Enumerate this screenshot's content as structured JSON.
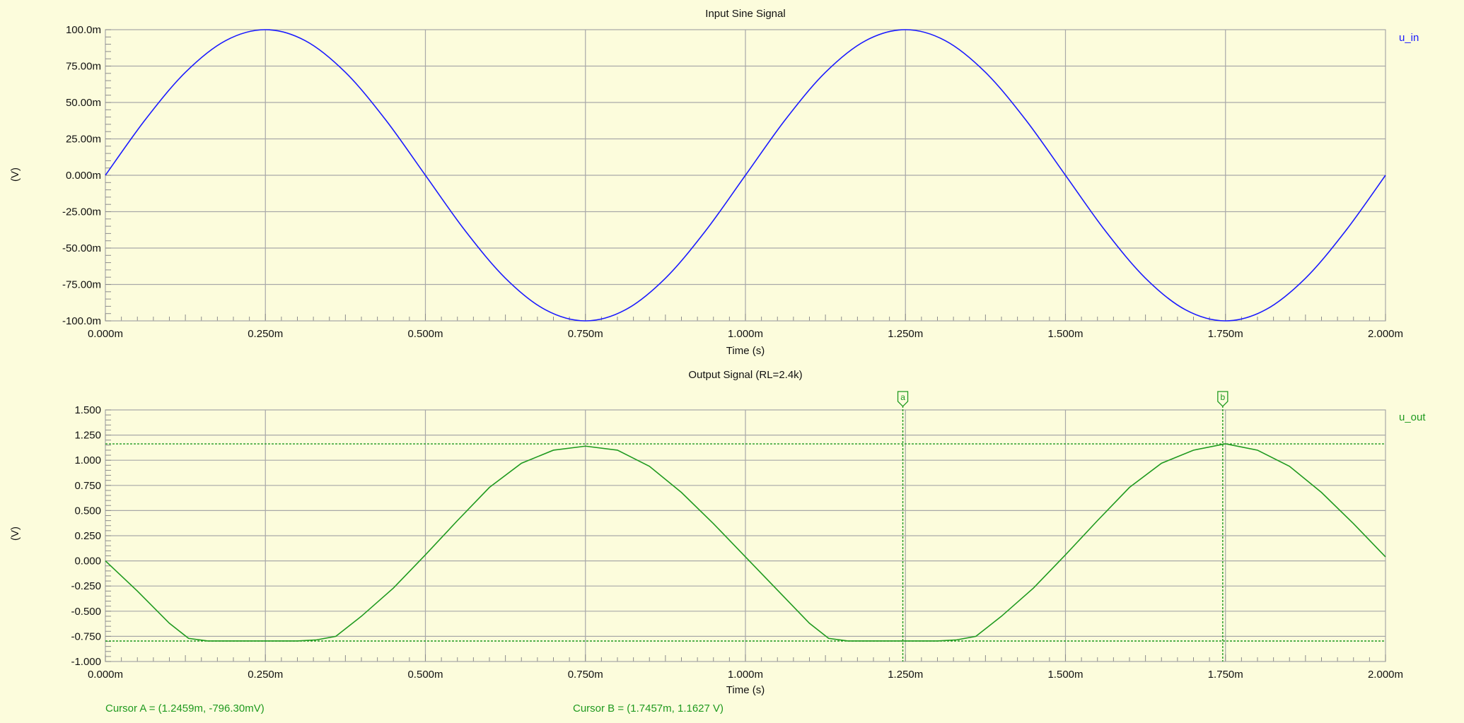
{
  "colors": {
    "background": "#fcfcdc",
    "grid": "#a8a8a8",
    "axis": "#8c8c8c",
    "text": "#111111",
    "input_trace": "#1a1aff",
    "output_trace": "#1f9a1f"
  },
  "chart_data": [
    {
      "type": "line",
      "title": "Input Sine Signal",
      "xlabel": "Time (s)",
      "ylabel": "(V)",
      "xlim": [
        0,
        0.002
      ],
      "ylim": [
        -0.1,
        0.1
      ],
      "x_ticks": [
        0,
        0.00025,
        0.0005,
        0.00075,
        0.001,
        0.00125,
        0.0015,
        0.00175,
        0.002
      ],
      "x_tick_labels": [
        "0.000m",
        "0.250m",
        "0.500m",
        "0.750m",
        "1.000m",
        "1.250m",
        "1.500m",
        "1.750m",
        "2.000m"
      ],
      "y_ticks": [
        0.1,
        0.075,
        0.05,
        0.025,
        0,
        -0.025,
        -0.05,
        -0.075,
        -0.1
      ],
      "y_tick_labels": [
        "100.0m",
        "75.00m",
        "50.00m",
        "25.00m",
        "0.000m",
        "-25.00m",
        "-50.00m",
        "-75.00m",
        "-100.0m"
      ],
      "grid": true,
      "legend_position": "top-right",
      "series": [
        {
          "name": "u_in",
          "color": "#1a1aff",
          "x": [
            0,
            6.25e-05,
            0.000125,
            0.0001875,
            0.00025,
            0.0003125,
            0.000375,
            0.0004375,
            0.0005,
            0.0005625,
            0.000625,
            0.0006875,
            0.00075,
            0.0008125,
            0.000875,
            0.0009375,
            0.001,
            0.0010625,
            0.001125,
            0.0011875,
            0.00125,
            0.0013125,
            0.001375,
            0.0014375,
            0.0015,
            0.0015625,
            0.001625,
            0.0016875,
            0.00175,
            0.0018125,
            0.001875,
            0.0019375,
            0.002
          ],
          "y": [
            0,
            0.0383,
            0.0707,
            0.0924,
            0.1,
            0.0924,
            0.0707,
            0.0383,
            0,
            -0.0383,
            -0.0707,
            -0.0924,
            -0.1,
            -0.0924,
            -0.0707,
            -0.0383,
            0,
            0.0383,
            0.0707,
            0.0924,
            0.1,
            0.0924,
            0.0707,
            0.0383,
            0,
            -0.0383,
            -0.0707,
            -0.0924,
            -0.1,
            -0.0924,
            -0.0707,
            -0.0383,
            0
          ]
        }
      ]
    },
    {
      "type": "line",
      "title": "Output Signal (RL=2.4k)",
      "xlabel": "Time (s)",
      "ylabel": "(V)",
      "xlim": [
        0,
        0.002
      ],
      "ylim": [
        -1.0,
        1.5
      ],
      "x_ticks": [
        0,
        0.00025,
        0.0005,
        0.00075,
        0.001,
        0.00125,
        0.0015,
        0.00175,
        0.002
      ],
      "x_tick_labels": [
        "0.000m",
        "0.250m",
        "0.500m",
        "0.750m",
        "1.000m",
        "1.250m",
        "1.500m",
        "1.750m",
        "2.000m"
      ],
      "y_ticks": [
        1.5,
        1.25,
        1.0,
        0.75,
        0.5,
        0.25,
        0,
        -0.25,
        -0.5,
        -0.75,
        -1.0
      ],
      "y_tick_labels": [
        "1.500",
        "1.250",
        "1.000",
        "0.750",
        "0.500",
        "0.250",
        "0.000",
        "-0.250",
        "-0.500",
        "-0.750",
        "-1.000"
      ],
      "grid": true,
      "legend_position": "top-right",
      "series": [
        {
          "name": "u_out",
          "color": "#1f9a1f",
          "x": [
            0,
            5e-05,
            0.0001,
            0.00013,
            0.00016,
            0.0002,
            0.00025,
            0.0003,
            0.00033,
            0.00036,
            0.0004,
            0.00045,
            0.0005,
            0.00055,
            0.0006,
            0.00065,
            0.0007,
            0.00075,
            0.0008,
            0.00085,
            0.0009,
            0.00095,
            0.001,
            0.00105,
            0.0011,
            0.00113,
            0.00116,
            0.0012,
            0.00125,
            0.0013,
            0.00133,
            0.00136,
            0.0014,
            0.00145,
            0.0015,
            0.00155,
            0.0016,
            0.00165,
            0.0017,
            0.00175,
            0.0018,
            0.00185,
            0.0019,
            0.00195,
            0.002
          ],
          "y": [
            0,
            -0.3,
            -0.62,
            -0.77,
            -0.796,
            -0.796,
            -0.796,
            -0.796,
            -0.785,
            -0.75,
            -0.55,
            -0.27,
            0.06,
            0.4,
            0.73,
            0.97,
            1.1,
            1.14,
            1.1,
            0.94,
            0.68,
            0.37,
            0.04,
            -0.29,
            -0.62,
            -0.77,
            -0.796,
            -0.796,
            -0.796,
            -0.796,
            -0.785,
            -0.75,
            -0.55,
            -0.27,
            0.06,
            0.4,
            0.73,
            0.97,
            1.1,
            1.163,
            1.1,
            0.94,
            0.68,
            0.37,
            0.04
          ]
        }
      ],
      "cursors": [
        {
          "label": "a",
          "x": 0.0012459,
          "y": -0.7963
        },
        {
          "label": "b",
          "x": 0.0017457,
          "y": 1.1627
        }
      ]
    }
  ],
  "readouts": {
    "cursor_a": "Cursor A = (1.2459m, -796.30mV)",
    "cursor_b": "Cursor B = (1.7457m, 1.1627 V)"
  }
}
